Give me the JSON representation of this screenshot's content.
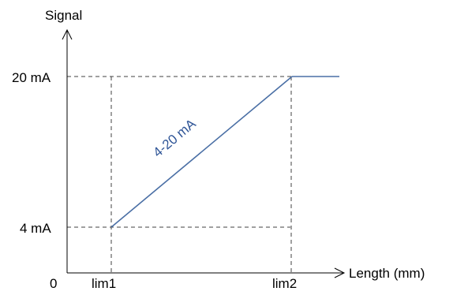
{
  "y_axis": {
    "label": "Signal",
    "ticks": [
      {
        "label": "20 mA",
        "value": 20
      },
      {
        "label": "4 mA",
        "value": 4
      }
    ]
  },
  "x_axis": {
    "label": "Length (mm)",
    "origin_label": "0",
    "ticks": [
      {
        "label": "lim1"
      },
      {
        "label": "lim2"
      }
    ]
  },
  "signal_line": {
    "label": "4-20 mA",
    "color": "#4a6fa5"
  },
  "colors": {
    "axis": "#000000",
    "guide": "#404040",
    "label_text": "#2f5597"
  }
}
